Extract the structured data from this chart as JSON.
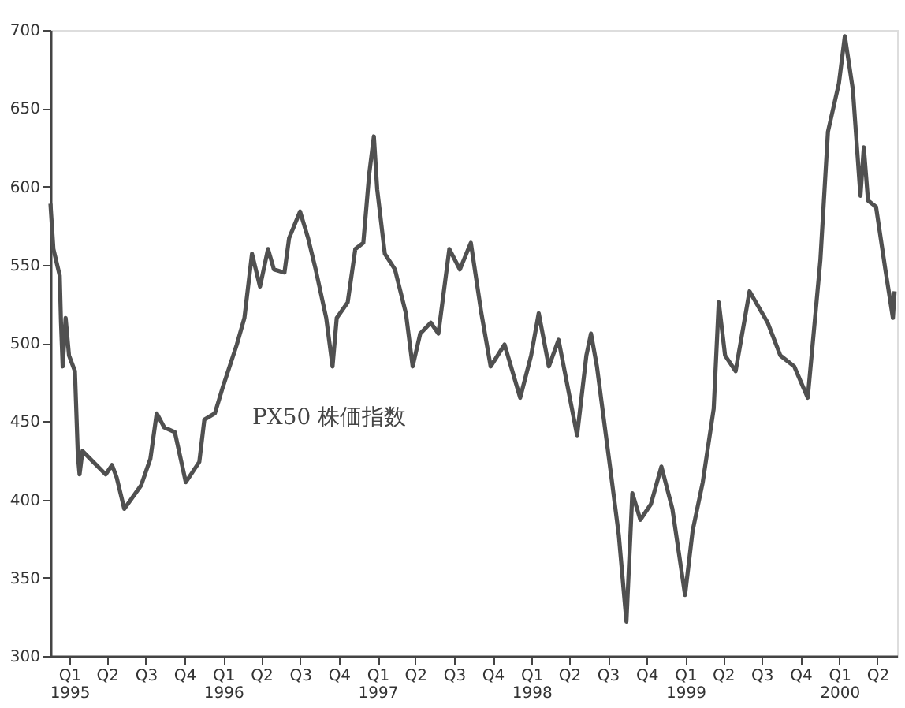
{
  "chart_data": {
    "type": "line",
    "x": [
      "1995-01-01",
      "1995-01-08",
      "1995-01-23",
      "1995-01-26",
      "1995-01-30",
      "1995-02-06",
      "1995-02-14",
      "1995-02-28",
      "1995-03-07",
      "1995-03-11",
      "1995-03-18",
      "1995-04-05",
      "1995-05-12",
      "1995-05-27",
      "1995-06-07",
      "1995-06-25",
      "1995-08-04",
      "1995-08-26",
      "1995-09-10",
      "1995-09-28",
      "1995-10-23",
      "1995-11-18",
      "1995-12-20",
      "1996-01-01",
      "1996-01-26",
      "1996-02-14",
      "1996-03-18",
      "1996-04-05",
      "1996-04-23",
      "1996-05-12",
      "1996-05-31",
      "1996-06-14",
      "1996-07-09",
      "1996-07-20",
      "1996-08-15",
      "1996-09-03",
      "1996-09-21",
      "1996-10-16",
      "1996-10-31",
      "1996-11-10",
      "1996-12-06",
      "1996-12-24",
      "1997-01-12",
      "1997-01-26",
      "1997-02-06",
      "1997-02-14",
      "1997-03-04",
      "1997-03-28",
      "1997-04-23",
      "1997-05-09",
      "1997-05-27",
      "1997-06-21",
      "1997-07-09",
      "1997-08-04",
      "1997-08-29",
      "1997-09-24",
      "1997-10-19",
      "1997-11-10",
      "1997-12-13",
      "1998-01-19",
      "1998-02-14",
      "1998-03-04",
      "1998-03-28",
      "1998-04-20",
      "1998-06-03",
      "1998-06-25",
      "1998-07-06",
      "1998-07-20",
      "1998-08-22",
      "1998-09-10",
      "1998-09-28",
      "1998-10-12",
      "1998-10-31",
      "1998-11-25",
      "1998-12-20",
      "1999-01-15",
      "1999-02-14",
      "1999-03-04",
      "1999-03-28",
      "1999-04-23",
      "1999-05-05",
      "1999-05-20",
      "1999-06-14",
      "1999-07-17",
      "1999-08-29",
      "1999-09-28",
      "1999-10-31",
      "1999-12-02",
      "2000-01-01",
      "2000-01-19",
      "2000-02-14",
      "2000-02-28",
      "2000-03-18",
      "2000-04-05",
      "2000-04-13",
      "2000-04-23",
      "2000-05-12",
      "2000-06-03",
      "2000-06-21",
      "2000-06-25"
    ],
    "series": [
      {
        "name": "PX50 株価指数",
        "color": "#505050",
        "values": [
          589,
          560,
          543,
          513,
          485,
          516,
          492,
          482,
          428,
          416,
          431,
          426,
          416,
          422,
          414,
          394,
          409,
          426,
          455,
          446,
          443,
          411,
          424,
          451,
          455,
          472,
          499,
          516,
          557,
          536,
          560,
          547,
          545,
          567,
          584,
          567,
          547,
          516,
          485,
          516,
          526,
          560,
          564,
          608,
          632,
          598,
          557,
          547,
          519,
          485,
          506,
          513,
          506,
          560,
          547,
          564,
          519,
          485,
          499,
          465,
          492,
          519,
          485,
          502,
          441,
          492,
          506,
          485,
          417,
          377,
          322,
          404,
          387,
          397,
          421,
          394,
          339,
          380,
          411,
          458,
          526,
          492,
          482,
          533,
          513,
          492,
          485,
          465,
          553,
          635,
          666,
          696,
          662,
          594,
          625,
          591,
          587,
          547,
          516,
          533
        ]
      }
    ],
    "xlim": [
      "1995-01-01",
      "2000-07-01"
    ],
    "xticks": [
      {
        "value": "1995-02-15",
        "label": "Q1\n1995"
      },
      {
        "value": "1995-05-15",
        "label": "Q2"
      },
      {
        "value": "1995-08-15",
        "label": "Q3"
      },
      {
        "value": "1995-11-15",
        "label": "Q4"
      },
      {
        "value": "1996-02-15",
        "label": "Q1\n1996"
      },
      {
        "value": "1996-05-15",
        "label": "Q2"
      },
      {
        "value": "1996-08-15",
        "label": "Q3"
      },
      {
        "value": "1996-11-15",
        "label": "Q4"
      },
      {
        "value": "1997-02-15",
        "label": "Q1\n1997"
      },
      {
        "value": "1997-05-15",
        "label": "Q2"
      },
      {
        "value": "1997-08-15",
        "label": "Q3"
      },
      {
        "value": "1997-11-15",
        "label": "Q4"
      },
      {
        "value": "1998-02-15",
        "label": "Q1\n1998"
      },
      {
        "value": "1998-05-15",
        "label": "Q2"
      },
      {
        "value": "1998-08-15",
        "label": "Q3"
      },
      {
        "value": "1998-11-15",
        "label": "Q4"
      },
      {
        "value": "1999-02-15",
        "label": "Q1\n1999"
      },
      {
        "value": "1999-05-15",
        "label": "Q2"
      },
      {
        "value": "1999-08-15",
        "label": "Q3"
      },
      {
        "value": "1999-11-15",
        "label": "Q4"
      },
      {
        "value": "2000-02-15",
        "label": "Q1\n2000"
      },
      {
        "value": "2000-05-15",
        "label": "Q2"
      }
    ],
    "ylim": [
      300,
      700
    ],
    "yticks": [
      300,
      350,
      400,
      450,
      500,
      550,
      600,
      650,
      700
    ],
    "grid": false,
    "legend": false,
    "marker": "none",
    "line_style": "solid"
  }
}
